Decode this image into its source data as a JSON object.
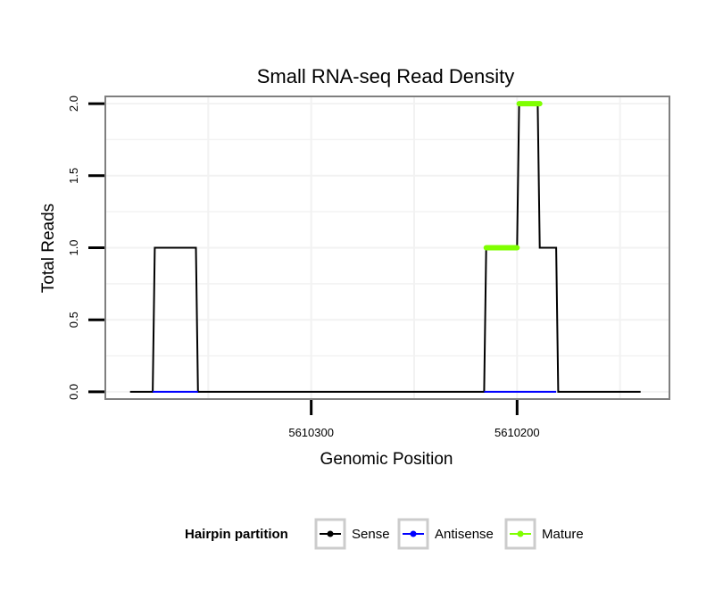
{
  "chart_data": {
    "type": "line",
    "title": "Small RNA-seq Read Density",
    "xlabel": "Genomic Position",
    "ylabel": "Total Reads",
    "x_reversed": true,
    "xlim": [
      5610400,
      5610126
    ],
    "ylim": [
      -0.05,
      2.05
    ],
    "x_ticks": [
      5610300,
      5610200
    ],
    "x_tick_labels": [
      "5610300",
      "5610200"
    ],
    "y_ticks": [
      0,
      0.5,
      1,
      1.5,
      2
    ],
    "y_tick_labels": [
      "0.0",
      "0.5",
      "1.0",
      "1.5",
      "2.0"
    ],
    "grid": true,
    "legend": {
      "title": "Hairpin partition",
      "position": "bottom",
      "entries": [
        {
          "label": "Sense",
          "color": "#000000"
        },
        {
          "label": "Antisense",
          "color": "#0000ff"
        },
        {
          "label": "Mature",
          "color": "#7fff00"
        }
      ]
    },
    "series": [
      {
        "name": "Sense",
        "color": "#000000",
        "points": [
          [
            5610388,
            0
          ],
          [
            5610377,
            0
          ],
          [
            5610376,
            1
          ],
          [
            5610356,
            1
          ],
          [
            5610355,
            0
          ],
          [
            5610216,
            0
          ],
          [
            5610215,
            1
          ],
          [
            5610200,
            1
          ],
          [
            5610199,
            2
          ],
          [
            5610190,
            2
          ],
          [
            5610189,
            1
          ],
          [
            5610181,
            1
          ],
          [
            5610180,
            0
          ],
          [
            5610140,
            0
          ]
        ]
      },
      {
        "name": "Antisense",
        "color": "#0000ff",
        "segments": [
          [
            [
              5610377,
              0
            ],
            [
              5610355,
              0
            ]
          ],
          [
            [
              5610216,
              0
            ],
            [
              5610181,
              0
            ]
          ]
        ]
      },
      {
        "name": "Mature",
        "color": "#7fff00",
        "segments": [
          [
            [
              5610215,
              1
            ],
            [
              5610200,
              1
            ]
          ],
          [
            [
              5610199,
              2
            ],
            [
              5610189,
              2
            ]
          ]
        ]
      }
    ]
  }
}
